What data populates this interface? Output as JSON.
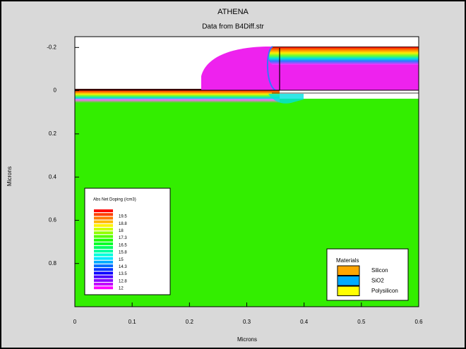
{
  "chart_data": {
    "type": "contour",
    "title": "ATHENA",
    "subtitle": "Data from B4Diff.str",
    "xlabel": "Microns",
    "ylabel": "Microns",
    "xlim": [
      0,
      0.6
    ],
    "ylim": [
      -0.25,
      1.0
    ],
    "y_inverted": true,
    "xticks": [
      0,
      0.1,
      0.2,
      0.3,
      0.4,
      0.5,
      0.6
    ],
    "yticks": [
      -0.2,
      0,
      0.2,
      0.4,
      0.6,
      0.8
    ],
    "colorbar": {
      "title": "Abs Net Doping (/cm3)",
      "levels": [
        19.5,
        18.8,
        18,
        17.3,
        16.5,
        15.8,
        15,
        14.3,
        13.5,
        12.8,
        12
      ]
    },
    "materials": {
      "title": "Materials",
      "items": [
        {
          "name": "Silicon",
          "color": "#ffa500"
        },
        {
          "name": "SiO2",
          "color": "#00aaff"
        },
        {
          "name": "Polysilicon",
          "color": "#ffff00"
        }
      ]
    }
  }
}
